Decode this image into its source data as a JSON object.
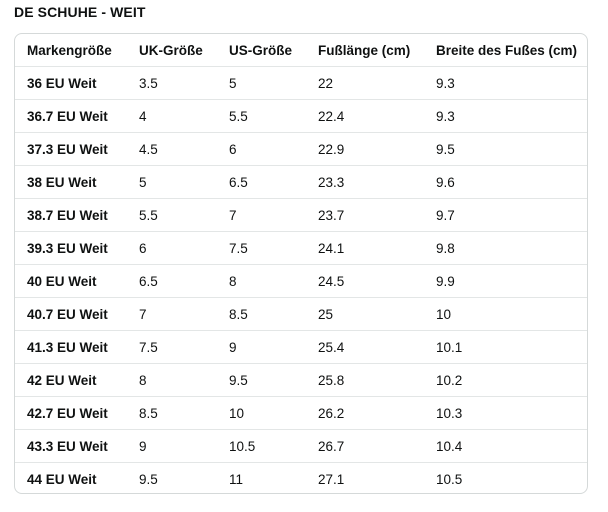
{
  "section": {
    "title": "DE SCHUHE - WEIT"
  },
  "table": {
    "headers": [
      "Markengröße",
      "UK-Größe",
      "US-Größe",
      "Fußlänge (cm)",
      "Breite des Fußes (cm)"
    ],
    "rows": [
      [
        "36 EU Weit",
        "3.5",
        "5",
        "22",
        "9.3"
      ],
      [
        "36.7 EU Weit",
        "4",
        "5.5",
        "22.4",
        "9.3"
      ],
      [
        "37.3 EU Weit",
        "4.5",
        "6",
        "22.9",
        "9.5"
      ],
      [
        "38 EU Weit",
        "5",
        "6.5",
        "23.3",
        "9.6"
      ],
      [
        "38.7 EU Weit",
        "5.5",
        "7",
        "23.7",
        "9.7"
      ],
      [
        "39.3 EU Weit",
        "6",
        "7.5",
        "24.1",
        "9.8"
      ],
      [
        "40 EU Weit",
        "6.5",
        "8",
        "24.5",
        "9.9"
      ],
      [
        "40.7 EU Weit",
        "7",
        "8.5",
        "25",
        "10"
      ],
      [
        "41.3 EU Weit",
        "7.5",
        "9",
        "25.4",
        "10.1"
      ],
      [
        "42 EU Weit",
        "8",
        "9.5",
        "25.8",
        "10.2"
      ],
      [
        "42.7 EU Weit",
        "8.5",
        "10",
        "26.2",
        "10.3"
      ],
      [
        "43.3 EU Weit",
        "9",
        "10.5",
        "26.7",
        "10.4"
      ],
      [
        "44 EU Weit",
        "9.5",
        "11",
        "27.1",
        "10.5"
      ]
    ]
  }
}
